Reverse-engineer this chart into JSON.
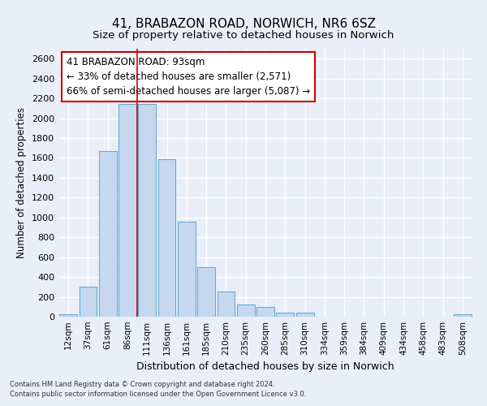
{
  "title1": "41, BRABAZON ROAD, NORWICH, NR6 6SZ",
  "title2": "Size of property relative to detached houses in Norwich",
  "xlabel": "Distribution of detached houses by size in Norwich",
  "ylabel": "Number of detached properties",
  "categories": [
    "12sqm",
    "37sqm",
    "61sqm",
    "86sqm",
    "111sqm",
    "136sqm",
    "161sqm",
    "185sqm",
    "210sqm",
    "235sqm",
    "260sqm",
    "285sqm",
    "310sqm",
    "334sqm",
    "359sqm",
    "384sqm",
    "409sqm",
    "434sqm",
    "458sqm",
    "483sqm",
    "508sqm"
  ],
  "values": [
    25,
    300,
    1670,
    2140,
    2140,
    1590,
    960,
    500,
    250,
    120,
    100,
    40,
    40,
    0,
    0,
    0,
    0,
    0,
    0,
    0,
    25
  ],
  "bar_color": "#c5d8f0",
  "bar_edge_color": "#6aaad4",
  "annotation_text": "41 BRABAZON ROAD: 93sqm\n← 33% of detached houses are smaller (2,571)\n66% of semi-detached houses are larger (5,087) →",
  "annotation_box_color": "#ffffff",
  "annotation_box_edge_color": "#cc0000",
  "vline_color": "#cc0000",
  "footer1": "Contains HM Land Registry data © Crown copyright and database right 2024.",
  "footer2": "Contains public sector information licensed under the Open Government Licence v3.0.",
  "ylim": [
    0,
    2700
  ],
  "yticks": [
    0,
    200,
    400,
    600,
    800,
    1000,
    1200,
    1400,
    1600,
    1800,
    2000,
    2200,
    2400,
    2600
  ],
  "background_color": "#eaeef8",
  "grid_color": "#ffffff",
  "title1_fontsize": 11,
  "title2_fontsize": 9.5,
  "xlabel_fontsize": 9,
  "ylabel_fontsize": 8.5,
  "annotation_fontsize": 8.5
}
